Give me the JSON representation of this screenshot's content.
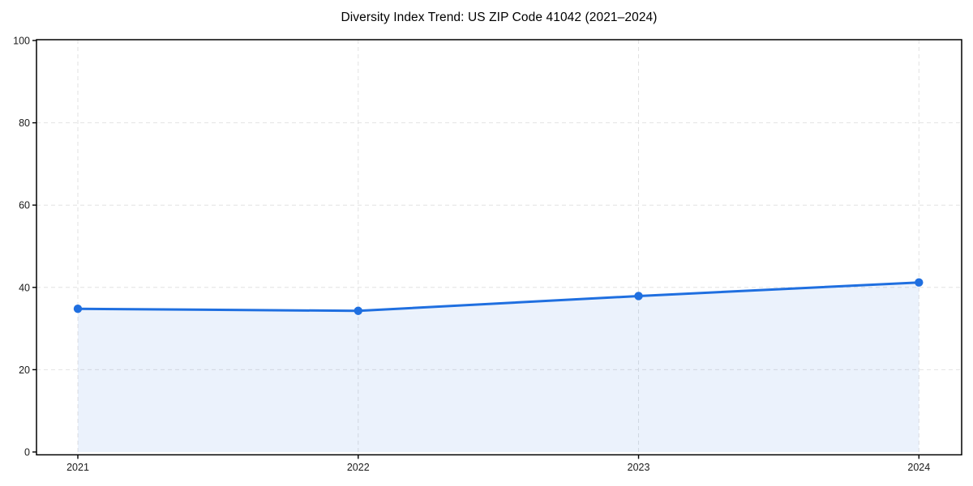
{
  "chart_data": {
    "type": "area",
    "title": "Diversity Index Trend: US ZIP Code 41042 (2021–2024)",
    "x": [
      "2021",
      "2022",
      "2023",
      "2024"
    ],
    "series": [
      {
        "name": "Diversity Index",
        "values": [
          34.8,
          34.3,
          37.9,
          41.2
        ]
      }
    ],
    "xlabel": "",
    "ylabel": "",
    "ylim": [
      0,
      100
    ],
    "yticks": [
      0,
      20,
      40,
      60,
      80,
      100
    ],
    "grid": "dashed, both axes",
    "legend": "none",
    "colors": {
      "line": "#1f6fe0",
      "marker": "#1f6fe0",
      "fill": "rgba(31,111,224,0.09)",
      "grid": "#e2e2e2",
      "spine": "#000000",
      "tick_label": "#1a1a1a",
      "title": "#000000"
    }
  }
}
